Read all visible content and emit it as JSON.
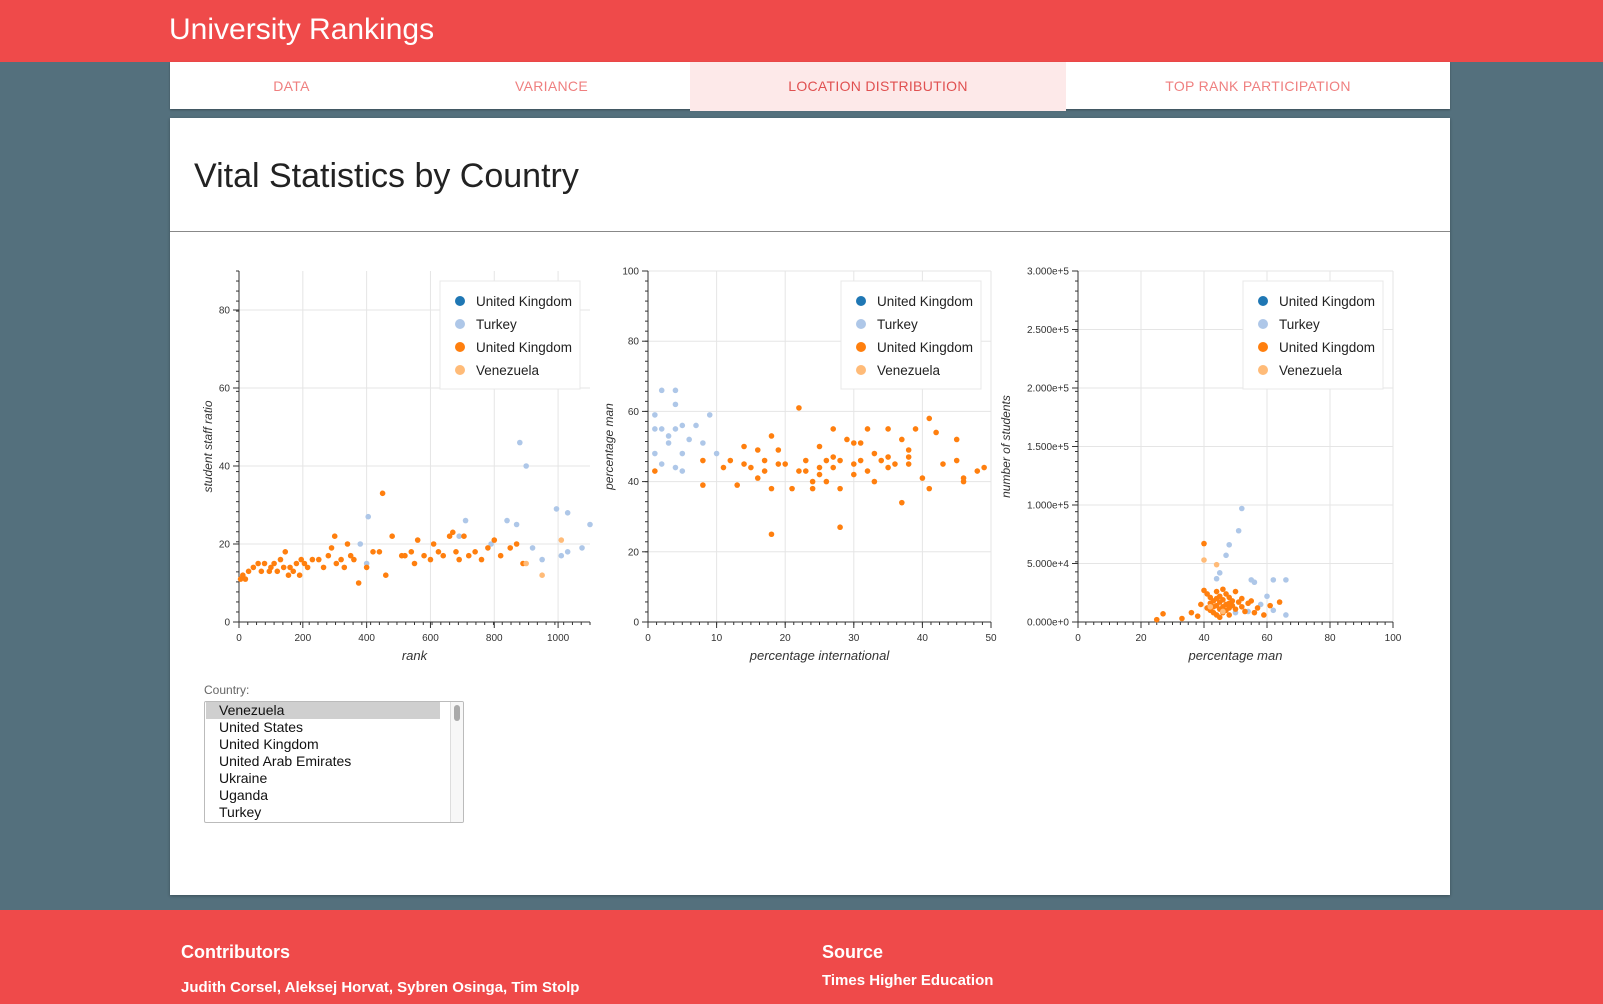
{
  "header": {
    "title": "University Rankings"
  },
  "tabs": [
    {
      "label": "DATA",
      "active": false
    },
    {
      "label": "VARIANCE",
      "active": false
    },
    {
      "label": "LOCATION DISTRIBUTION",
      "active": true
    },
    {
      "label": "TOP RANK PARTICIPATION",
      "active": false
    }
  ],
  "main": {
    "heading": "Vital Statistics by Country"
  },
  "colors": {
    "brand": "#ef4a4a",
    "background": "#54707d",
    "uk": "#1f77b4",
    "turkey": "#aec7e8",
    "uk2": "#ff7f0e",
    "venezuela": "#ffbb78"
  },
  "country_select": {
    "label": "Country:",
    "options": [
      "Venezuela",
      "United States",
      "United Kingdom",
      "United Arab Emirates",
      "Ukraine",
      "Uganda",
      "Turkey"
    ],
    "selected": "Venezuela"
  },
  "footer": {
    "contributors_title": "Contributors",
    "contributors": "Judith Corsel, Aleksej Horvat, Sybren Osinga, Tim Stolp",
    "source_title": "Source",
    "source": "Times Higher Education"
  },
  "chart_data": [
    {
      "type": "scatter",
      "xlabel": "rank",
      "ylabel": "student staff ratio",
      "xlim": [
        0,
        1100
      ],
      "ylim": [
        0,
        90
      ],
      "xticks": [
        "0",
        "200",
        "400",
        "600",
        "800",
        "1000"
      ],
      "yticks": [
        "0",
        "20",
        "40",
        "60",
        "80"
      ],
      "legend_position": "top-right",
      "series": [
        {
          "name": "United Kingdom",
          "color": "#1f77b4",
          "points": []
        },
        {
          "name": "Turkey",
          "color": "#aec7e8",
          "points": [
            [
              380,
              20
            ],
            [
              405,
              27
            ],
            [
              400,
              15
            ],
            [
              710,
              26
            ],
            [
              840,
              26
            ],
            [
              880,
              46
            ],
            [
              900,
              40
            ],
            [
              870,
              25
            ],
            [
              920,
              19
            ],
            [
              950,
              16
            ],
            [
              995,
              29
            ],
            [
              1010,
              17
            ],
            [
              1030,
              18
            ],
            [
              1030,
              28
            ],
            [
              1075,
              19
            ],
            [
              1100,
              25
            ],
            [
              690,
              22
            ],
            [
              790,
              20
            ]
          ]
        },
        {
          "name": "United Kingdom",
          "color": "#ff7f0e",
          "points": [
            [
              5,
              11
            ],
            [
              12,
              12
            ],
            [
              20,
              11
            ],
            [
              30,
              13
            ],
            [
              45,
              14
            ],
            [
              60,
              15
            ],
            [
              70,
              13
            ],
            [
              80,
              15
            ],
            [
              95,
              13
            ],
            [
              100,
              14
            ],
            [
              110,
              15
            ],
            [
              120,
              13
            ],
            [
              130,
              16
            ],
            [
              140,
              14
            ],
            [
              145,
              18
            ],
            [
              155,
              12
            ],
            [
              160,
              14
            ],
            [
              170,
              13
            ],
            [
              180,
              15
            ],
            [
              190,
              12
            ],
            [
              195,
              16
            ],
            [
              205,
              15
            ],
            [
              215,
              14
            ],
            [
              230,
              16
            ],
            [
              250,
              16
            ],
            [
              265,
              14
            ],
            [
              280,
              17
            ],
            [
              290,
              19
            ],
            [
              300,
              22
            ],
            [
              305,
              15
            ],
            [
              320,
              16
            ],
            [
              330,
              14
            ],
            [
              340,
              20
            ],
            [
              350,
              17
            ],
            [
              360,
              16
            ],
            [
              375,
              10
            ],
            [
              400,
              14
            ],
            [
              420,
              18
            ],
            [
              440,
              18
            ],
            [
              450,
              33
            ],
            [
              460,
              12
            ],
            [
              480,
              22
            ],
            [
              510,
              17
            ],
            [
              520,
              17
            ],
            [
              540,
              18
            ],
            [
              550,
              15
            ],
            [
              560,
              21
            ],
            [
              580,
              17
            ],
            [
              600,
              16
            ],
            [
              610,
              20
            ],
            [
              625,
              18
            ],
            [
              640,
              17
            ],
            [
              660,
              22
            ],
            [
              670,
              23
            ],
            [
              680,
              18
            ],
            [
              690,
              16
            ],
            [
              705,
              22
            ],
            [
              720,
              17
            ],
            [
              740,
              18
            ],
            [
              760,
              16
            ],
            [
              780,
              19
            ],
            [
              800,
              21
            ],
            [
              820,
              17
            ],
            [
              850,
              19
            ],
            [
              870,
              20
            ],
            [
              890,
              15
            ]
          ]
        },
        {
          "name": "Venezuela",
          "color": "#ffbb78",
          "points": [
            [
              950,
              12
            ],
            [
              1010,
              21
            ],
            [
              900,
              15
            ]
          ]
        }
      ]
    },
    {
      "type": "scatter",
      "xlabel": "percentage international",
      "ylabel": "percentage man",
      "xlim": [
        0,
        50
      ],
      "ylim": [
        0,
        100
      ],
      "xticks": [
        "0",
        "10",
        "20",
        "30",
        "40",
        "50"
      ],
      "yticks": [
        "0",
        "20",
        "40",
        "60",
        "80",
        "100"
      ],
      "legend_position": "top-right",
      "series": [
        {
          "name": "United Kingdom",
          "color": "#1f77b4",
          "points": []
        },
        {
          "name": "Turkey",
          "color": "#aec7e8",
          "points": [
            [
              1,
              59
            ],
            [
              1,
              55
            ],
            [
              1,
              48
            ],
            [
              2,
              66
            ],
            [
              2,
              55
            ],
            [
              2,
              45
            ],
            [
              3,
              53
            ],
            [
              3,
              51
            ],
            [
              4,
              66
            ],
            [
              4,
              62
            ],
            [
              4,
              55
            ],
            [
              4,
              44
            ],
            [
              5,
              56
            ],
            [
              5,
              48
            ],
            [
              5,
              43
            ],
            [
              6,
              52
            ],
            [
              7,
              56
            ],
            [
              8,
              51
            ],
            [
              9,
              59
            ],
            [
              10,
              48
            ]
          ]
        },
        {
          "name": "United Kingdom",
          "color": "#ff7f0e",
          "points": [
            [
              1,
              43
            ],
            [
              8,
              46
            ],
            [
              8,
              39
            ],
            [
              11,
              44
            ],
            [
              12,
              46
            ],
            [
              13,
              39
            ],
            [
              14,
              50
            ],
            [
              14,
              45
            ],
            [
              15,
              44
            ],
            [
              16,
              49
            ],
            [
              16,
              41
            ],
            [
              17,
              46
            ],
            [
              17,
              43
            ],
            [
              18,
              53
            ],
            [
              18,
              38
            ],
            [
              18,
              25
            ],
            [
              19,
              49
            ],
            [
              19,
              45
            ],
            [
              20,
              45
            ],
            [
              21,
              38
            ],
            [
              22,
              61
            ],
            [
              22,
              43
            ],
            [
              23,
              46
            ],
            [
              23,
              43
            ],
            [
              24,
              40
            ],
            [
              24,
              38
            ],
            [
              25,
              44
            ],
            [
              25,
              42
            ],
            [
              25,
              50
            ],
            [
              26,
              46
            ],
            [
              26,
              40
            ],
            [
              27,
              55
            ],
            [
              27,
              47
            ],
            [
              27,
              44
            ],
            [
              28,
              46
            ],
            [
              28,
              38
            ],
            [
              28,
              27
            ],
            [
              29,
              52
            ],
            [
              30,
              51
            ],
            [
              30,
              45
            ],
            [
              30,
              42
            ],
            [
              31,
              51
            ],
            [
              31,
              46
            ],
            [
              32,
              55
            ],
            [
              32,
              43
            ],
            [
              33,
              48
            ],
            [
              33,
              40
            ],
            [
              34,
              46
            ],
            [
              35,
              55
            ],
            [
              35,
              47
            ],
            [
              35,
              44
            ],
            [
              36,
              45
            ],
            [
              37,
              52
            ],
            [
              37,
              34
            ],
            [
              38,
              49
            ],
            [
              38,
              47
            ],
            [
              38,
              45
            ],
            [
              39,
              55
            ],
            [
              40,
              41
            ],
            [
              41,
              58
            ],
            [
              41,
              38
            ],
            [
              42,
              54
            ],
            [
              43,
              45
            ],
            [
              45,
              52
            ],
            [
              45,
              46
            ],
            [
              46,
              41
            ],
            [
              46,
              40
            ],
            [
              48,
              43
            ],
            [
              49,
              44
            ]
          ]
        },
        {
          "name": "Venezuela",
          "color": "#ffbb78",
          "points": []
        }
      ]
    },
    {
      "type": "scatter",
      "xlabel": "percentage man",
      "ylabel": "number of students",
      "xlim": [
        0,
        100
      ],
      "ylim": [
        0,
        300000
      ],
      "xticks": [
        "0",
        "20",
        "40",
        "60",
        "80",
        "100"
      ],
      "yticks": [
        "0.000e+0",
        "5.000e+4",
        "1.000e+5",
        "1.500e+5",
        "2.000e+5",
        "2.500e+5",
        "3.000e+5"
      ],
      "legend_position": "top-right",
      "series": [
        {
          "name": "United Kingdom",
          "color": "#1f77b4",
          "points": []
        },
        {
          "name": "Turkey",
          "color": "#aec7e8",
          "points": [
            [
              52,
              97000
            ],
            [
              51,
              78000
            ],
            [
              48,
              66000
            ],
            [
              47,
              57000
            ],
            [
              45,
              42000
            ],
            [
              44,
              37000
            ],
            [
              56,
              34000
            ],
            [
              55,
              36000
            ],
            [
              62,
              36000
            ],
            [
              66,
              36000
            ],
            [
              60,
              22000
            ],
            [
              58,
              15000
            ],
            [
              62,
              10000
            ],
            [
              66,
              6000
            ],
            [
              50,
              8000
            ],
            [
              54,
              9000
            ]
          ]
        },
        {
          "name": "United Kingdom",
          "color": "#ff7f0e",
          "points": [
            [
              25,
              2000
            ],
            [
              27,
              7000
            ],
            [
              33,
              3000
            ],
            [
              36,
              8000
            ],
            [
              38,
              5000
            ],
            [
              39,
              15000
            ],
            [
              40,
              67000
            ],
            [
              40,
              27000
            ],
            [
              41,
              24000
            ],
            [
              41,
              12000
            ],
            [
              42,
              21000
            ],
            [
              42,
              16000
            ],
            [
              42,
              10000
            ],
            [
              43,
              18000
            ],
            [
              43,
              13000
            ],
            [
              43,
              8000
            ],
            [
              44,
              26000
            ],
            [
              44,
              20000
            ],
            [
              44,
              14000
            ],
            [
              44,
              6000
            ],
            [
              45,
              22000
            ],
            [
              45,
              17000
            ],
            [
              45,
              11000
            ],
            [
              45,
              4000
            ],
            [
              46,
              28000
            ],
            [
              46,
              19000
            ],
            [
              46,
              13000
            ],
            [
              46,
              8000
            ],
            [
              47,
              24000
            ],
            [
              47,
              15000
            ],
            [
              47,
              10000
            ],
            [
              48,
              21000
            ],
            [
              48,
              16000
            ],
            [
              48,
              12000
            ],
            [
              48,
              6000
            ],
            [
              49,
              18000
            ],
            [
              49,
              14000
            ],
            [
              50,
              26000
            ],
            [
              50,
              11000
            ],
            [
              51,
              17000
            ],
            [
              52,
              20000
            ],
            [
              52,
              13000
            ],
            [
              53,
              9000
            ],
            [
              54,
              16000
            ],
            [
              55,
              18000
            ],
            [
              56,
              8000
            ],
            [
              57,
              12000
            ],
            [
              59,
              6000
            ],
            [
              61,
              14000
            ],
            [
              64,
              17000
            ]
          ]
        },
        {
          "name": "Venezuela",
          "color": "#ffbb78",
          "points": [
            [
              40,
              53000
            ],
            [
              44,
              49000
            ],
            [
              42,
              13000
            ],
            [
              46,
              9000
            ]
          ]
        }
      ]
    }
  ]
}
